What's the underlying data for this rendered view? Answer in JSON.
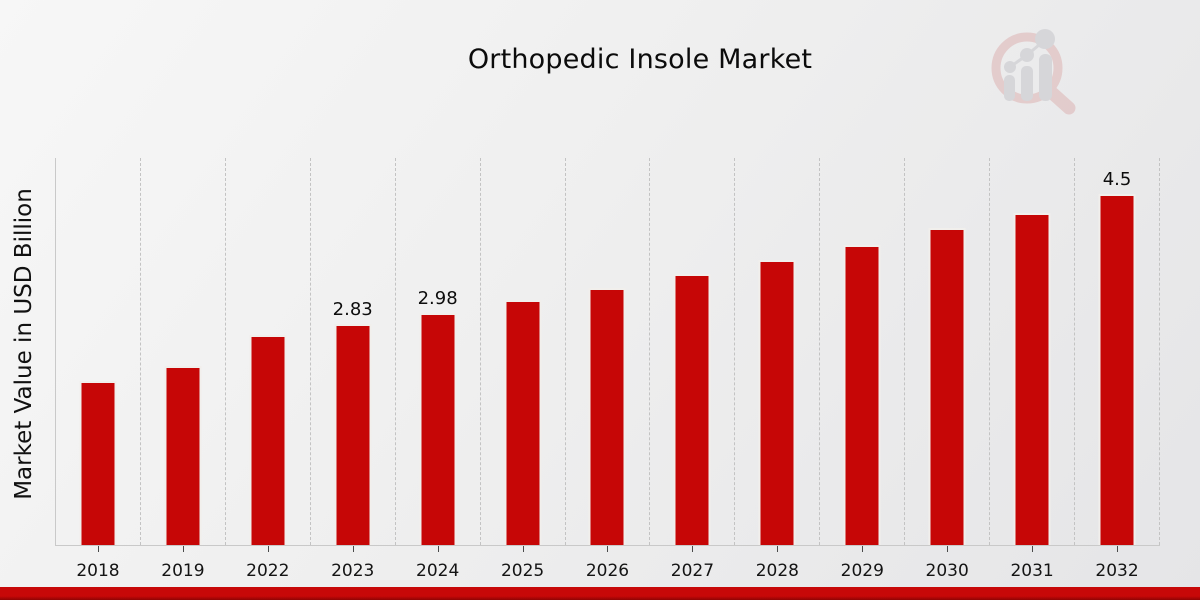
{
  "page": {
    "title": "Orthopedic Insole Market"
  },
  "chart_data": {
    "type": "bar",
    "title": "Orthopedic Insole Market",
    "xlabel": "",
    "ylabel": "Market Value in USD Billion",
    "categories": [
      "2018",
      "2019",
      "2022",
      "2023",
      "2024",
      "2025",
      "2026",
      "2027",
      "2028",
      "2029",
      "2030",
      "2031",
      "2032"
    ],
    "values": [
      2.1,
      2.3,
      2.69,
      2.83,
      2.98,
      3.14,
      3.3,
      3.47,
      3.65,
      3.84,
      4.06,
      4.26,
      4.5
    ],
    "data_labels": {
      "2023": "2.83",
      "2024": "2.98",
      "2032": "4.5"
    },
    "ylim": [
      0,
      4.95
    ],
    "grid": "vertical-dashed-category-separators",
    "legend": "none",
    "series_name": "Market Value in USD Billion"
  },
  "colors": {
    "bar": "#c60606",
    "bar_edge": "#f1efec",
    "accent_strip": "#c70808",
    "accent_strip_dark": "#8f0404",
    "background_start": "#f7f7f7",
    "background_end": "#e5e5e7",
    "axis_line": "#c9c9c9",
    "gridline": "#c3c3c3",
    "text": "#111111"
  },
  "watermark": {
    "icon": "magnifier-bar-chart-logo-icon"
  }
}
